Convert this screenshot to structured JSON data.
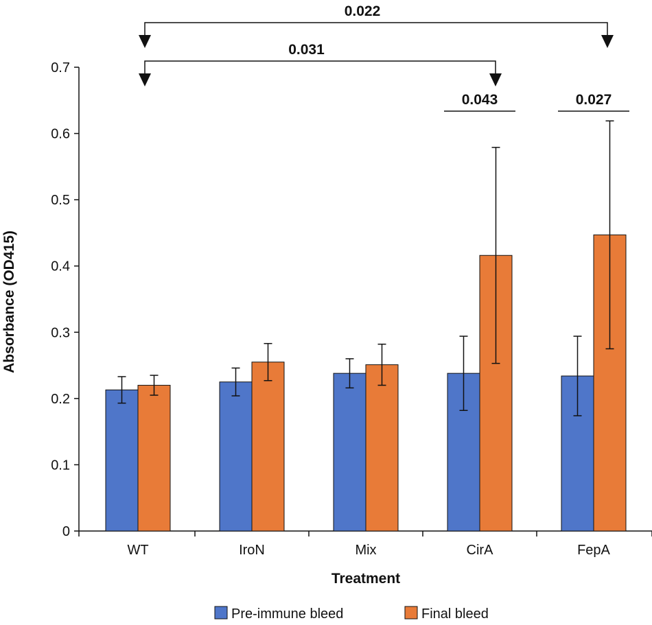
{
  "chart_data": {
    "type": "bar",
    "title": "",
    "xlabel": "Treatment",
    "ylabel": "Absorbance (OD415)",
    "ylim": [
      0,
      0.7
    ],
    "yticks": [
      0,
      0.1,
      0.2,
      0.3,
      0.4,
      0.5,
      0.6,
      0.7
    ],
    "ytick_labels": [
      "0",
      "0.1",
      "0.2",
      "0.3",
      "0.4",
      "0.5",
      "0.6",
      "0.7"
    ],
    "categories": [
      "WT",
      "IroN",
      "Mix",
      "CirA",
      "FepA"
    ],
    "series": [
      {
        "name": "Pre-immune bleed",
        "color": "#4f76c9",
        "values": [
          0.213,
          0.225,
          0.238,
          0.238,
          0.234
        ],
        "errors": [
          0.02,
          0.021,
          0.022,
          0.056,
          0.06
        ]
      },
      {
        "name": "Final bleed",
        "color": "#e87b38",
        "values": [
          0.22,
          0.255,
          0.251,
          0.416,
          0.447
        ],
        "errors": [
          0.015,
          0.028,
          0.031,
          0.163,
          0.172
        ]
      }
    ],
    "significance": [
      {
        "label": "0.022",
        "type": "bracket",
        "from": "WT",
        "to": "FepA"
      },
      {
        "label": "0.031",
        "type": "bracket",
        "from": "WT",
        "to": "CirA"
      },
      {
        "label": "0.043",
        "type": "line",
        "category": "CirA"
      },
      {
        "label": "0.027",
        "type": "line",
        "category": "FepA"
      }
    ],
    "legend_position": "bottom",
    "grid": false
  }
}
